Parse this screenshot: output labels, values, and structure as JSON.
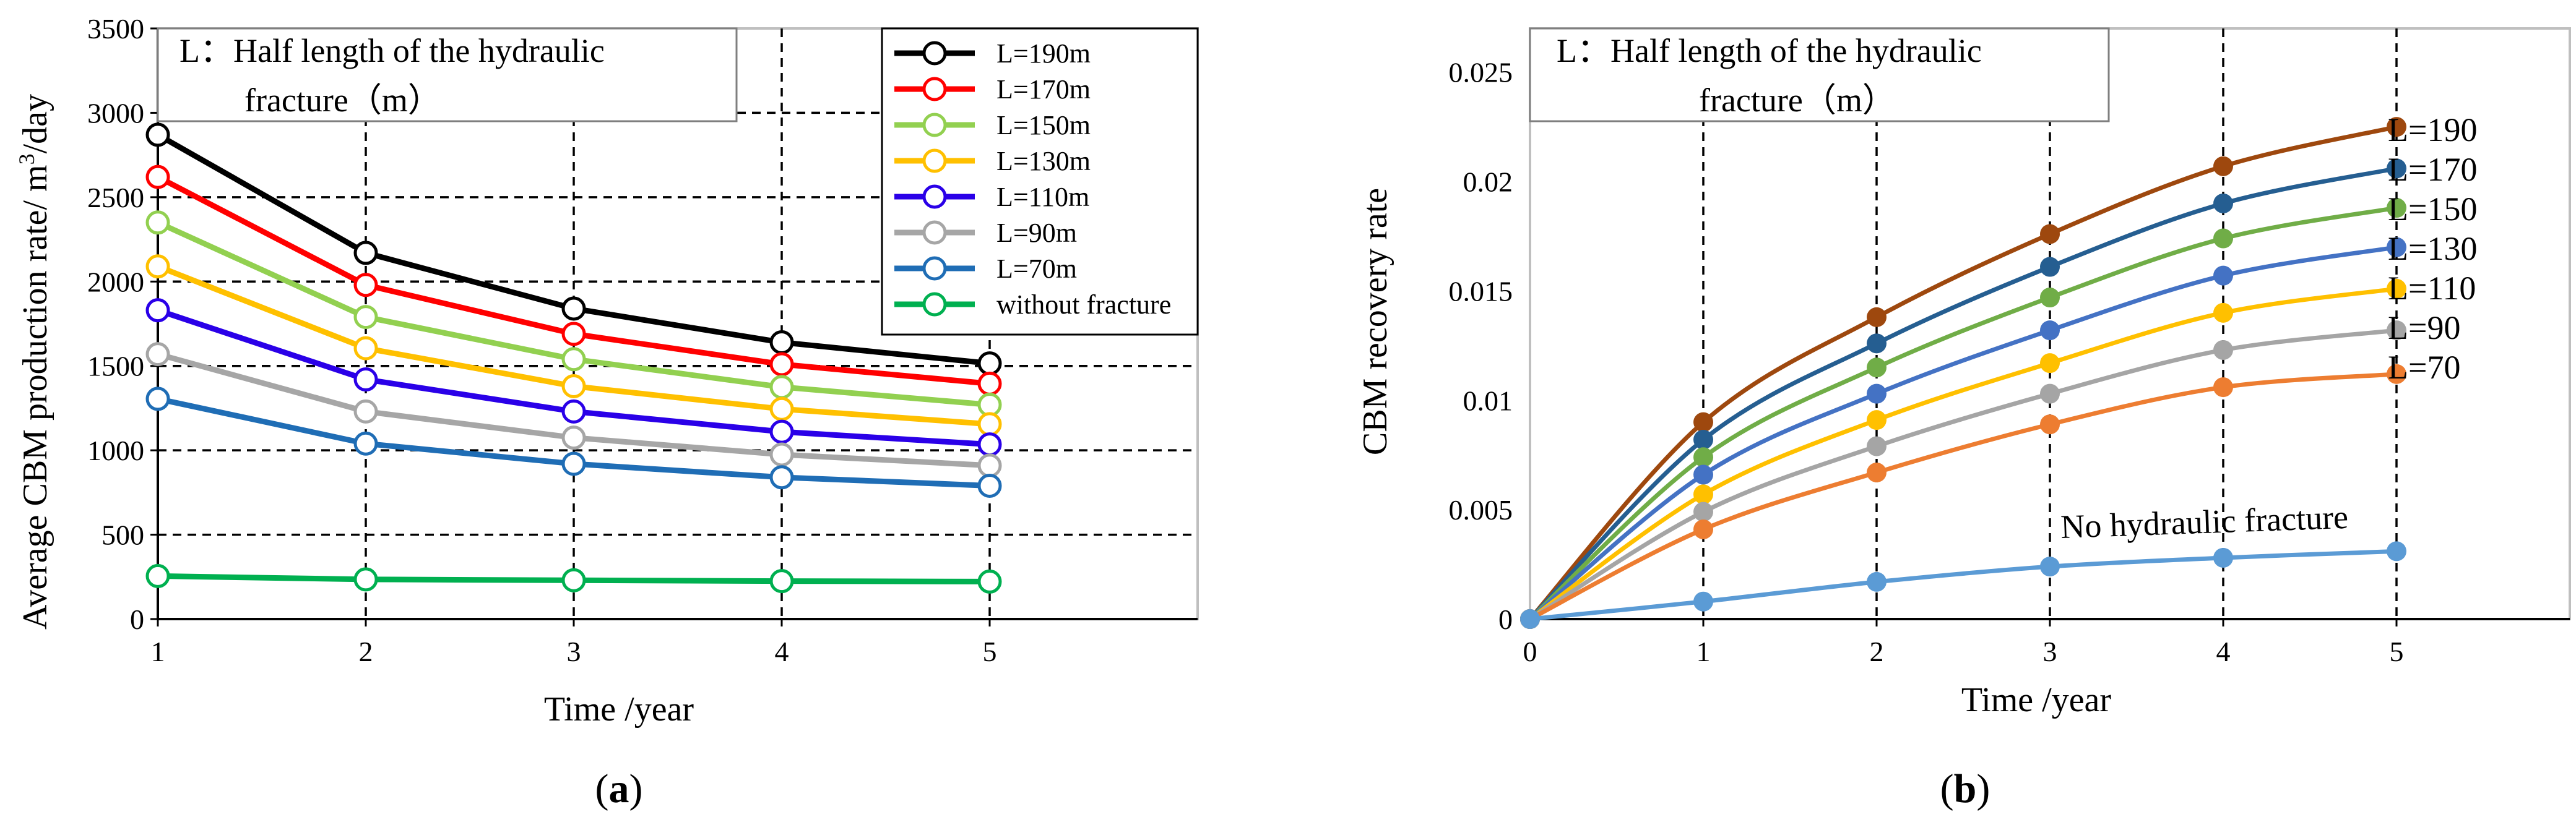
{
  "panels": {
    "a": {
      "label_open": "(",
      "label_letter": "a",
      "label_close": ")",
      "note_line1": "L：Half length of the hydraulic",
      "note_line2": "fracture（m）"
    },
    "b": {
      "label_open": "(",
      "label_letter": "b",
      "label_close": ")",
      "note_line1": "L：Half length of the hydraulic",
      "note_line2": "fracture（m）",
      "annotation": "No hydraulic fracture"
    }
  },
  "chart_data": [
    {
      "type": "line",
      "panel": "a",
      "title": "",
      "xlabel": "Time /year",
      "ylabel_main": "Average CBM production rate/ m",
      "ylabel_sup": "3",
      "ylabel_tail": "/day",
      "x": [
        1,
        2,
        3,
        4,
        5
      ],
      "xlim": [
        1,
        6
      ],
      "ylim": [
        0,
        3500
      ],
      "xticks": [
        1,
        2,
        3,
        4,
        5
      ],
      "yticks": [
        0,
        500,
        1000,
        1500,
        2000,
        2500,
        3000,
        3500
      ],
      "grid": "dashed",
      "legend_position": "top-right",
      "series": [
        {
          "name": "L=190m",
          "color": "#000000",
          "values": [
            2870,
            2170,
            1840,
            1640,
            1515
          ]
        },
        {
          "name": "L=170m",
          "color": "#ff0000",
          "values": [
            2620,
            1980,
            1690,
            1510,
            1395
          ]
        },
        {
          "name": "L=150m",
          "color": "#92d050",
          "values": [
            2350,
            1790,
            1540,
            1375,
            1270
          ]
        },
        {
          "name": "L=130m",
          "color": "#ffc000",
          "values": [
            2090,
            1605,
            1380,
            1245,
            1155
          ]
        },
        {
          "name": "L=110m",
          "color": "#2a00e8",
          "values": [
            1830,
            1420,
            1230,
            1110,
            1035
          ]
        },
        {
          "name": "L=90m",
          "color": "#a6a6a6",
          "values": [
            1570,
            1230,
            1075,
            975,
            910
          ]
        },
        {
          "name": "L=70m",
          "color": "#1f6db5",
          "values": [
            1305,
            1040,
            920,
            840,
            790
          ]
        },
        {
          "name": "without fracture",
          "color": "#00b050",
          "values": [
            255,
            235,
            230,
            225,
            222
          ]
        }
      ]
    },
    {
      "type": "line",
      "panel": "b",
      "title": "",
      "xlabel": "Time /year",
      "ylabel": "CBM recovery rate",
      "x": [
        0,
        1,
        2,
        3,
        4,
        5
      ],
      "xlim": [
        0,
        6
      ],
      "ylim": [
        0,
        0.027
      ],
      "xticks": [
        0,
        1,
        2,
        3,
        4,
        5
      ],
      "yticks": [
        "0",
        "0.005",
        "0.01",
        "0.015",
        "0.02",
        "0.025"
      ],
      "ytick_values": [
        0,
        0.005,
        0.01,
        0.015,
        0.02,
        0.025
      ],
      "grid": "vertical dashed",
      "series": [
        {
          "name": "L=190",
          "color": "#9e480e",
          "values": [
            0,
            0.009,
            0.0138,
            0.0176,
            0.0207,
            0.0225
          ]
        },
        {
          "name": "L=170",
          "color": "#255e91",
          "values": [
            0,
            0.0082,
            0.0126,
            0.0161,
            0.019,
            0.0206
          ]
        },
        {
          "name": "L=150",
          "color": "#70ad47",
          "values": [
            0,
            0.0074,
            0.0115,
            0.0147,
            0.0174,
            0.0188
          ]
        },
        {
          "name": "L=130",
          "color": "#4472c4",
          "values": [
            0,
            0.0066,
            0.0103,
            0.0132,
            0.0157,
            0.017
          ]
        },
        {
          "name": "L=110",
          "color": "#ffc000",
          "values": [
            0,
            0.0057,
            0.0091,
            0.0117,
            0.014,
            0.0151
          ]
        },
        {
          "name": "L=90",
          "color": "#a5a5a5",
          "values": [
            0,
            0.0049,
            0.0079,
            0.0103,
            0.0123,
            0.0132
          ]
        },
        {
          "name": "L=70",
          "color": "#ed7d31",
          "values": [
            0,
            0.0041,
            0.0067,
            0.0089,
            0.0106,
            0.0112
          ]
        },
        {
          "name": "",
          "color": "#5b9bd5",
          "values": [
            0,
            0.0008,
            0.0017,
            0.0024,
            0.0028,
            0.0031
          ]
        }
      ]
    }
  ]
}
